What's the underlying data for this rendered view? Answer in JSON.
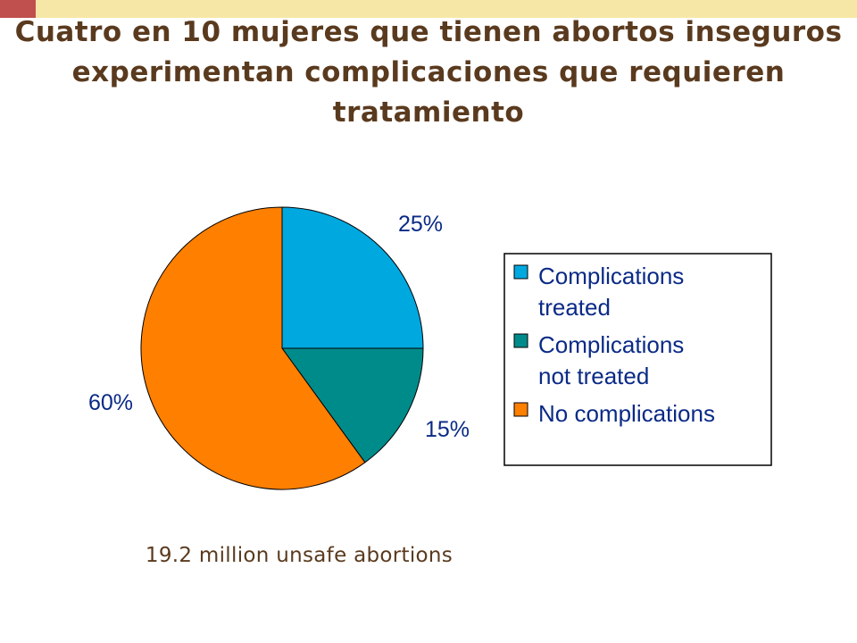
{
  "colors": {
    "corner_block": "#c0504d",
    "top_bar": "#f7e7a6",
    "title": "#5a3a1e",
    "label_text": "#0a2a86",
    "footnote_text": "#5a3a1e"
  },
  "title": "Cuatro en 10 mujeres que tienen abortos inseguros experimentan complicaciones que requieren tratamiento",
  "footnote": "19.2 million unsafe abortions",
  "chart_data": {
    "type": "pie",
    "start_angle_deg": 0,
    "direction": "clockwise",
    "legend_position": "right",
    "slices": [
      {
        "label": "Complications treated",
        "legend_lines": [
          "Complications",
          "treated"
        ],
        "value": 25,
        "value_label": "25%",
        "color": "#00a8e0"
      },
      {
        "label": "Complications not treated",
        "legend_lines": [
          "Complications",
          "not treated"
        ],
        "value": 15,
        "value_label": "15%",
        "color": "#008b8b"
      },
      {
        "label": "No complications",
        "legend_lines": [
          "No complications"
        ],
        "value": 60,
        "value_label": "60%",
        "color": "#ff7f00"
      }
    ]
  }
}
